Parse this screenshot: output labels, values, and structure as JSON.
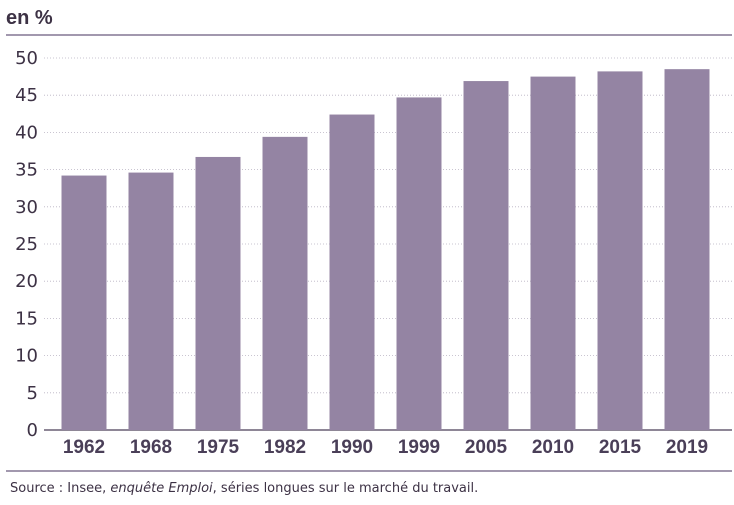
{
  "chart_data": {
    "type": "bar",
    "unit_label": "en %",
    "categories": [
      "1962",
      "1968",
      "1975",
      "1982",
      "1990",
      "1999",
      "2005",
      "2010",
      "2015",
      "2019"
    ],
    "values": [
      34.2,
      34.6,
      36.7,
      39.4,
      42.4,
      44.7,
      46.9,
      47.5,
      48.2,
      48.5
    ],
    "ylim": [
      0,
      50
    ],
    "yticks": [
      0,
      5,
      10,
      15,
      20,
      25,
      30,
      35,
      40,
      45,
      50
    ],
    "grid": true,
    "bar_color": "#9484a3",
    "accent_color": "#6b5a7e"
  },
  "source": {
    "prefix": "Source : Insee, ",
    "italic": "enquête Emploi",
    "suffix": ", séries longues sur le marché du travail."
  }
}
